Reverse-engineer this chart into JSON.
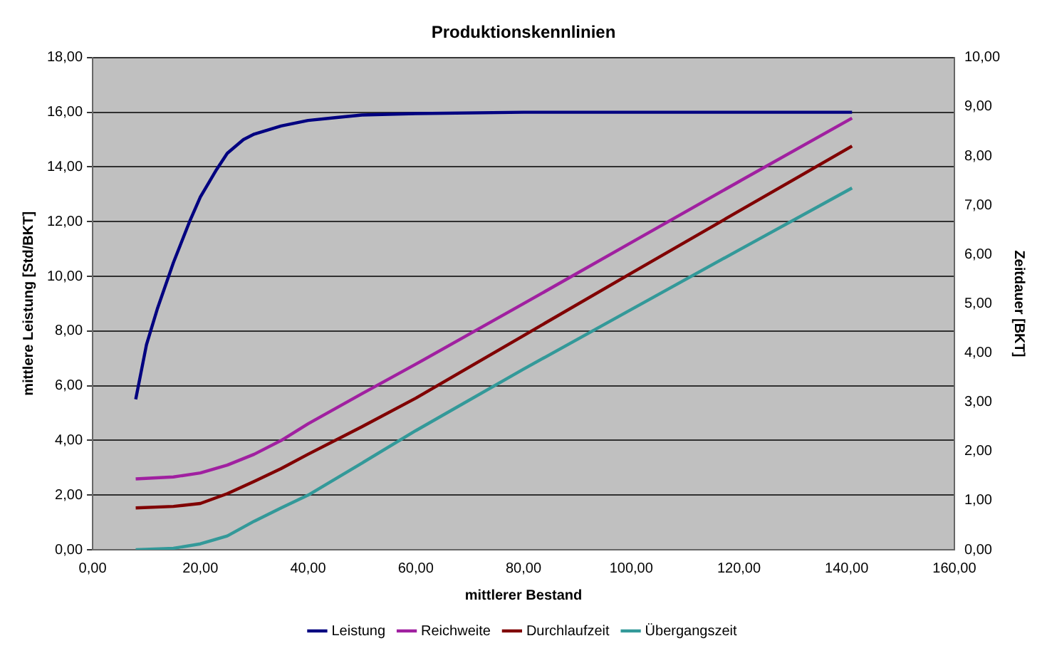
{
  "chart_data": {
    "type": "line",
    "title": "Produktionskennlinien",
    "xlabel": "mittlerer Bestand",
    "ylabel": "mittlere Leistung [Std/BKT]",
    "y2label": "Zeitdauer [BKT]",
    "xlim": [
      0,
      160
    ],
    "xticks": [
      {
        "value": 0,
        "label": "0,00"
      },
      {
        "value": 20,
        "label": "20,00"
      },
      {
        "value": 40,
        "label": "40,00"
      },
      {
        "value": 60,
        "label": "60,00"
      },
      {
        "value": 80,
        "label": "80,00"
      },
      {
        "value": 100,
        "label": "100,00"
      },
      {
        "value": 120,
        "label": "120,00"
      },
      {
        "value": 140,
        "label": "140,00"
      },
      {
        "value": 160,
        "label": "160,00"
      }
    ],
    "ylim": [
      0,
      18
    ],
    "yticks": [
      {
        "value": 0,
        "label": "0,00"
      },
      {
        "value": 2,
        "label": "2,00"
      },
      {
        "value": 4,
        "label": "4,00"
      },
      {
        "value": 6,
        "label": "6,00"
      },
      {
        "value": 8,
        "label": "8,00"
      },
      {
        "value": 10,
        "label": "10,00"
      },
      {
        "value": 12,
        "label": "12,00"
      },
      {
        "value": 14,
        "label": "14,00"
      },
      {
        "value": 16,
        "label": "16,00"
      },
      {
        "value": 18,
        "label": "18,00"
      }
    ],
    "y2lim": [
      0,
      10
    ],
    "y2ticks": [
      {
        "value": 0,
        "label": "0,00"
      },
      {
        "value": 1,
        "label": "1,00"
      },
      {
        "value": 2,
        "label": "2,00"
      },
      {
        "value": 3,
        "label": "3,00"
      },
      {
        "value": 4,
        "label": "4,00"
      },
      {
        "value": 5,
        "label": "5,00"
      },
      {
        "value": 6,
        "label": "6,00"
      },
      {
        "value": 7,
        "label": "7,00"
      },
      {
        "value": 8,
        "label": "8,00"
      },
      {
        "value": 9,
        "label": "9,00"
      },
      {
        "value": 10,
        "label": "10,00"
      }
    ],
    "grid": "y",
    "legend": "bottom",
    "marker": "none",
    "line_style": "solid",
    "series": [
      {
        "name": "Leistung",
        "color": "#000080",
        "x": [
          8,
          10,
          12,
          15,
          18,
          20,
          23,
          25,
          28,
          30,
          35,
          40,
          45,
          50,
          60,
          80,
          100,
          120,
          141
        ],
        "values": [
          5.5,
          7.5,
          8.8,
          10.5,
          12,
          12.9,
          13.9,
          14.5,
          15,
          15.2,
          15.5,
          15.7,
          15.8,
          15.9,
          15.95,
          16,
          16,
          16,
          16
        ]
      },
      {
        "name": "Reichweite",
        "color": "#a020a0",
        "axis": "y2",
        "x": [
          8,
          15,
          20,
          25,
          30,
          35,
          40,
          50,
          60,
          80,
          100,
          120,
          141
        ],
        "values": [
          1.44,
          1.48,
          1.56,
          1.72,
          1.94,
          2.22,
          2.56,
          3.17,
          3.77,
          5.0,
          6.24,
          7.48,
          8.77
        ]
      },
      {
        "name": "Durchlaufzeit",
        "color": "#800000",
        "axis": "y2",
        "x": [
          8,
          15,
          20,
          25,
          30,
          35,
          40,
          50,
          60,
          80,
          100,
          120,
          141
        ],
        "values": [
          0.85,
          0.88,
          0.94,
          1.14,
          1.39,
          1.65,
          1.94,
          2.5,
          3.08,
          4.35,
          5.62,
          6.88,
          8.2
        ]
      },
      {
        "name": "Übergangszeit",
        "color": "#339999",
        "axis": "y2",
        "x": [
          8,
          15,
          20,
          25,
          30,
          35,
          40,
          50,
          60,
          80,
          100,
          120,
          141
        ],
        "values": [
          0,
          0.03,
          0.12,
          0.28,
          0.58,
          0.85,
          1.11,
          1.76,
          2.42,
          3.67,
          4.88,
          6.09,
          7.35
        ]
      }
    ]
  }
}
